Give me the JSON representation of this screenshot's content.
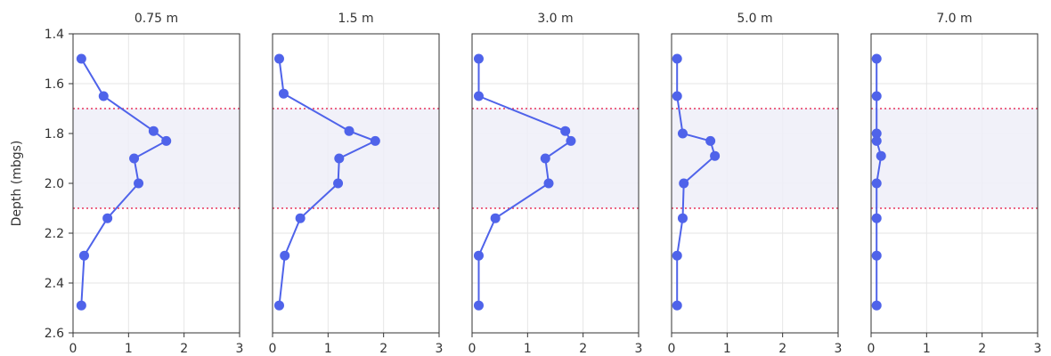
{
  "chart_data": {
    "type": "line",
    "ylabel": "Depth (mbgs)",
    "ylim": [
      2.6,
      1.4
    ],
    "yticks": [
      "1.4",
      "1.6",
      "1.8",
      "2.0",
      "2.2",
      "2.4",
      "2.6"
    ],
    "xlim": [
      0,
      3
    ],
    "xticks": [
      "0",
      "1",
      "2",
      "3"
    ],
    "grid": true,
    "band": {
      "from": 1.7,
      "to": 2.1
    },
    "colors": {
      "line": "#4f63ea",
      "band": "#eeeef8",
      "band_line": "#e8365d",
      "grid": "#e6e6e6",
      "axis": "#333333"
    },
    "panels": [
      {
        "title": "0.75 m",
        "points": [
          {
            "x": 0.15,
            "y": 1.5
          },
          {
            "x": 0.55,
            "y": 1.65
          },
          {
            "x": 1.45,
            "y": 1.79
          },
          {
            "x": 1.68,
            "y": 1.83
          },
          {
            "x": 1.1,
            "y": 1.9
          },
          {
            "x": 1.18,
            "y": 2.0
          },
          {
            "x": 0.62,
            "y": 2.14
          },
          {
            "x": 0.2,
            "y": 2.29
          },
          {
            "x": 0.15,
            "y": 2.49
          }
        ]
      },
      {
        "title": "1.5 m",
        "points": [
          {
            "x": 0.12,
            "y": 1.5
          },
          {
            "x": 0.2,
            "y": 1.64
          },
          {
            "x": 1.38,
            "y": 1.79
          },
          {
            "x": 1.85,
            "y": 1.83
          },
          {
            "x": 1.2,
            "y": 1.9
          },
          {
            "x": 1.18,
            "y": 2.0
          },
          {
            "x": 0.5,
            "y": 2.14
          },
          {
            "x": 0.22,
            "y": 2.29
          },
          {
            "x": 0.12,
            "y": 2.49
          }
        ]
      },
      {
        "title": "3.0 m",
        "points": [
          {
            "x": 0.12,
            "y": 1.5
          },
          {
            "x": 0.12,
            "y": 1.65
          },
          {
            "x": 1.68,
            "y": 1.79
          },
          {
            "x": 1.78,
            "y": 1.83
          },
          {
            "x": 1.32,
            "y": 1.9
          },
          {
            "x": 1.38,
            "y": 2.0
          },
          {
            "x": 0.42,
            "y": 2.14
          },
          {
            "x": 0.12,
            "y": 2.29
          },
          {
            "x": 0.12,
            "y": 2.49
          }
        ]
      },
      {
        "title": "5.0 m",
        "points": [
          {
            "x": 0.1,
            "y": 1.5
          },
          {
            "x": 0.1,
            "y": 1.65
          },
          {
            "x": 0.2,
            "y": 1.8
          },
          {
            "x": 0.7,
            "y": 1.83
          },
          {
            "x": 0.78,
            "y": 1.89
          },
          {
            "x": 0.22,
            "y": 2.0
          },
          {
            "x": 0.2,
            "y": 2.14
          },
          {
            "x": 0.1,
            "y": 2.29
          },
          {
            "x": 0.1,
            "y": 2.49
          }
        ]
      },
      {
        "title": "7.0 m",
        "points": [
          {
            "x": 0.1,
            "y": 1.5
          },
          {
            "x": 0.1,
            "y": 1.65
          },
          {
            "x": 0.1,
            "y": 1.8
          },
          {
            "x": 0.1,
            "y": 1.83
          },
          {
            "x": 0.18,
            "y": 1.89
          },
          {
            "x": 0.1,
            "y": 2.0
          },
          {
            "x": 0.1,
            "y": 2.14
          },
          {
            "x": 0.1,
            "y": 2.29
          },
          {
            "x": 0.1,
            "y": 2.49
          }
        ]
      }
    ]
  }
}
